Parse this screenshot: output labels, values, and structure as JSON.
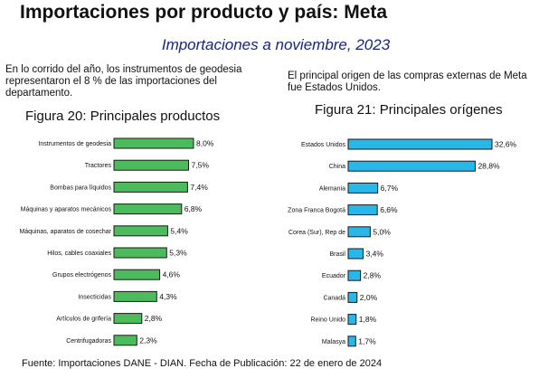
{
  "title": "Importaciones por producto y país: Meta",
  "subtitle": "Importaciones a noviembre, 2023",
  "paragraph_left": "En lo corrido del año, los instrumentos de geodesia representaron el 8 % de las importaciones del departamento.",
  "paragraph_right": "El principal origen de las compras externas de Meta fue Estados Unidos.",
  "source": "Fuente: Importaciones DANE - DIAN. Fecha de Publicación: 22 de enero de 2024",
  "chart_data": [
    {
      "type": "bar",
      "orientation": "horizontal",
      "title": "Figura 20: Principales productos",
      "color": "#4cbb5c",
      "categories": [
        "Instrumentos de geodesia",
        "Tractores",
        "Bombas para líquidos",
        "Máquinas y aparatos mecánicos",
        "Máquinas, aparatos de cosechar",
        "Hilos, cables coaxiales",
        "Grupos electrógenos",
        "Insecticidas",
        "Artículos de grifería",
        "Centrifugadoras"
      ],
      "values": [
        8.0,
        7.5,
        7.4,
        6.8,
        5.4,
        5.3,
        4.6,
        4.3,
        2.8,
        2.3
      ],
      "labels": [
        "8,0%",
        "7,5%",
        "7,4%",
        "6,8%",
        "5,4%",
        "5,3%",
        "4,6%",
        "4,3%",
        "2,8%",
        "2,3%"
      ]
    },
    {
      "type": "bar",
      "orientation": "horizontal",
      "title": "Figura 21: Principales orígenes",
      "color": "#29b6e8",
      "categories": [
        "Estados Unidos",
        "China",
        "Alemania",
        "Zona Franca Bogotá",
        "Corea (Sur), Rep de",
        "Brasil",
        "Ecuador",
        "Canadá",
        "Reino Unido",
        "Malasya"
      ],
      "values": [
        32.6,
        28.8,
        6.7,
        6.6,
        5.0,
        3.4,
        2.8,
        2.0,
        1.8,
        1.7
      ],
      "labels": [
        "32,6%",
        "28,8%",
        "6,7%",
        "6,6%",
        "5,0%",
        "3,4%",
        "2,8%",
        "2,0%",
        "1,8%",
        "1,7%"
      ]
    }
  ]
}
